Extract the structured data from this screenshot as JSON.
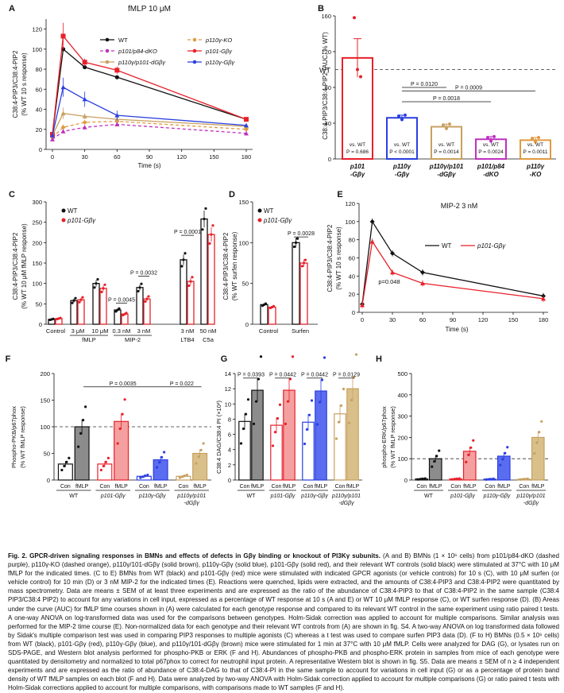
{
  "colors": {
    "wt": "#111111",
    "p101gbg": "#e8202a",
    "p110gbg": "#2b3fe0",
    "p110p101": "#c8a060",
    "p84": "#c030c0",
    "ko": "#e09a40",
    "grey": "#8c8c8c",
    "pink": "#f4a0a0",
    "blue": "#5a6cf0",
    "tan": "#d9c08a"
  },
  "panels": [
    {
      "letter": "A",
      "title": "fMLP 10 μM",
      "ylabel": "C38:4-PIP3/C38:4-PIP2",
      "ylabel2": "(% WT 10 s response)",
      "xlabel": "Time (s)",
      "xticks": [
        "0",
        "30",
        "60",
        "90",
        "120",
        "150",
        "180"
      ],
      "yticks": [
        "0",
        "20",
        "40",
        "60",
        "80",
        "100",
        "120"
      ],
      "legend": [
        "WT",
        "p110γ-KO",
        "p101/p84-dKO",
        "p101-Gβγ",
        "p110γ/p101-dGβγ",
        "p110γ-Gβγ"
      ],
      "chart_data": {
        "type": "line",
        "x": [
          0,
          10,
          30,
          60,
          180
        ],
        "xlim": [
          0,
          180
        ],
        "ylim": [
          0,
          130
        ],
        "series": [
          {
            "name": "WT",
            "values": [
              15,
              100,
              82,
              72,
              30
            ]
          },
          {
            "name": "p110γ-KO",
            "values": [
              12,
              22,
              27,
              28,
              20
            ]
          },
          {
            "name": "p101/p84-dKO",
            "values": [
              10,
              18,
              22,
              25,
              16
            ]
          },
          {
            "name": "p101-Gβγ",
            "values": [
              15,
              113,
              87,
              79,
              30
            ]
          },
          {
            "name": "p110γ/p101-dGβγ",
            "values": [
              14,
              36,
              33,
              30,
              23
            ]
          },
          {
            "name": "p110γ-Gβγ",
            "values": [
              14,
              62,
              50,
              34,
              24
            ]
          }
        ]
      }
    },
    {
      "letter": "B",
      "ylabel": "C38:4-PIP3/C38:4-PIP2 (AUC, % WT)",
      "wt_label": "WT",
      "yticks": [
        "0",
        "40",
        "80",
        "120",
        "160"
      ],
      "pvals": [
        "P = 0.0120",
        "P = 0.0009",
        "P = 0.0018"
      ],
      "chart_data": {
        "type": "bar",
        "ylim": [
          0,
          160
        ],
        "reference_line": 100,
        "categories": [
          "p101 -Gβγ",
          "p110γ -Gβγ",
          "p110γ/p101 -dGβγ",
          "p101/p84 -dKO",
          "p110γ -KO"
        ],
        "values": [
          113,
          46,
          36,
          22,
          21
        ],
        "annotations": [
          "vs. WT P = 0.686",
          "vs. WT P < 0.0001",
          "vs. WT P = 0.0014",
          "vs. WT P = 0.0024",
          "vs. WT P = 0.0011"
        ]
      }
    },
    {
      "letter": "C",
      "ylabel": "C38:4-PIP3/C38:4-PIP2",
      "ylabel2": "(% WT 10 μM fMLP response)",
      "yticks": [
        "0",
        "50",
        "100",
        "150",
        "200",
        "250",
        "300"
      ],
      "legend": [
        "WT",
        "p101-Gβγ"
      ],
      "pvals": [
        "P = 0.0001",
        "P = 0.0032",
        "P = 0.0045"
      ],
      "group_labels": [
        "fMLP",
        "MIP-2"
      ],
      "chart_data": {
        "type": "bar",
        "ylim": [
          0,
          300
        ],
        "categories": [
          "Control",
          "3 μM",
          "10 μM",
          "0.3 nM",
          "3 nM",
          "3 nM LTB4",
          "50 nM C5a"
        ],
        "series": [
          {
            "name": "WT",
            "values": [
              12,
              58,
              100,
              35,
              90,
              158,
              258
            ]
          },
          {
            "name": "p101-Gβγ",
            "values": [
              14,
              60,
              88,
              25,
              62,
              105,
              220
            ]
          }
        ]
      }
    },
    {
      "letter": "D",
      "ylabel": "C38:4-PIP3/C38:4-PIP2",
      "ylabel2": "(% WT surfen response)",
      "yticks": [
        "0",
        "50",
        "100",
        "150"
      ],
      "legend": [
        "WT",
        "p101-Gβγ"
      ],
      "pvals": [
        "P = 0.0028"
      ],
      "chart_data": {
        "type": "bar",
        "ylim": [
          0,
          150
        ],
        "categories": [
          "Control",
          "Surfen"
        ],
        "series": [
          {
            "name": "WT",
            "values": [
              24,
              100
            ]
          },
          {
            "name": "p101-Gβγ",
            "values": [
              21,
              75
            ]
          }
        ]
      }
    },
    {
      "letter": "E",
      "title": "MIP-2 3 nM",
      "ylabel": "C38:4-PIP3/C38:4-PIP2",
      "ylabel2": "(% WT 10 s response)",
      "xlabel": "Time (s)",
      "xticks": [
        "0",
        "30",
        "60",
        "90",
        "120",
        "150",
        "180"
      ],
      "yticks": [
        "0",
        "20",
        "40",
        "60",
        "80",
        "100",
        "120"
      ],
      "legend": [
        "WT",
        "p101-Gβγ"
      ],
      "pvals": [
        "p=0.048"
      ],
      "chart_data": {
        "type": "line",
        "x": [
          0,
          10,
          30,
          60,
          180
        ],
        "xlim": [
          0,
          180
        ],
        "ylim": [
          0,
          120
        ],
        "series": [
          {
            "name": "WT",
            "values": [
              9,
              100,
              65,
              44,
              18
            ]
          },
          {
            "name": "p101-Gβγ",
            "values": [
              8,
              78,
              44,
              32,
              15
            ]
          }
        ]
      }
    },
    {
      "letter": "F",
      "ylabel": "Phospho-PKB/p67phox",
      "ylabel2": "(% WT fMLP response)",
      "yticks": [
        "0",
        "50",
        "100",
        "150",
        "200"
      ],
      "pvals": [
        "P = 0.0035",
        "P = 0.022"
      ],
      "xticks": [
        "Con",
        "fMLP",
        "Con",
        "fMLP",
        "Con",
        "fMLP",
        "Con",
        "fMLP"
      ],
      "groups": [
        "WT",
        "p101-Gβγ",
        "p110γ-Gβγ",
        "p110γ/p101 -dGβγ"
      ],
      "chart_data": {
        "type": "bar",
        "ylim": [
          0,
          200
        ],
        "reference_line": 100,
        "categories": [
          "WT Con",
          "WT fMLP",
          "p101-Gβγ Con",
          "p101-Gβγ fMLP",
          "p110γ-Gβγ Con",
          "p110γ-Gβγ fMLP",
          "p110γ/p101-dGβγ Con",
          "p110γ/p101-dGβγ fMLP"
        ],
        "values": [
          30,
          100,
          30,
          110,
          7,
          38,
          7,
          50
        ]
      }
    },
    {
      "letter": "G",
      "ylabel": "C38:4 DAG/C38:4 PI (×10²)",
      "yticks": [
        "0",
        "2",
        "4",
        "6",
        "8",
        "10",
        "12",
        "14"
      ],
      "pvals": [
        "P = 0.0393",
        "P = 0.0442",
        "P = 0.0442",
        "P = 0.0129"
      ],
      "xticks": [
        "Con",
        "fMLP",
        "Con",
        "fMLP",
        "Con",
        "fMLP",
        "Con",
        "fMLP"
      ],
      "groups": [
        "WT",
        "p101-Gβγ",
        "p110γ-Gβγ",
        "p110γ/p101 -dGβγ"
      ],
      "chart_data": {
        "type": "bar",
        "ylim": [
          0,
          14
        ],
        "categories": [
          "WT Con",
          "WT fMLP",
          "p101-Gβγ Con",
          "p101-Gβγ fMLP",
          "p110γ-Gβγ Con",
          "p110γ-Gβγ fMLP",
          "p110γ/p101-dGβγ Con",
          "p110γ/p101-dGβγ fMLP"
        ],
        "values": [
          7.7,
          11.8,
          7.2,
          11.8,
          7.6,
          11.7,
          8.7,
          12.0
        ]
      }
    },
    {
      "letter": "H",
      "ylabel": "phospho-ERK/p67phox",
      "ylabel2": "(% WT fMLP response)",
      "yticks": [
        "0",
        "100",
        "200",
        "300",
        "400",
        "500"
      ],
      "xticks": [
        "Con",
        "fMLP",
        "Con",
        "fMLP",
        "Con",
        "fMLP",
        "Con",
        "fMLP"
      ],
      "groups": [
        "WT",
        "p101-Gβγ",
        "p110γ-Gβγ",
        "p110γ/p101 -dGβγ"
      ],
      "chart_data": {
        "type": "bar",
        "ylim": [
          0,
          500
        ],
        "reference_line": 100,
        "categories": [
          "WT Con",
          "WT fMLP",
          "p101-Gβγ Con",
          "p101-Gβγ fMLP",
          "p110γ-Gβγ Con",
          "p110γ-Gβγ fMLP",
          "p110γ/p101-dGβγ Con",
          "p110γ/p101-dGβγ fMLP"
        ],
        "values": [
          5,
          100,
          5,
          135,
          4,
          112,
          4,
          200
        ]
      }
    }
  ],
  "caption": {
    "title": "Fig. 2. GPCR-driven signaling responses in BMNs and effects of defects in Gβγ binding or knockout of PI3Kγ subunits.",
    "body": " (A and B) BMNs (1 × 10⁶ cells) from p101/p84-dKO (dashed purple), p110γ-KO (dashed orange), p110γ/101-dGβγ (solid brown), p110γ-Gβγ (solid blue), p101-Gβγ (solid red), and their relevant WT controls (solid black) were stimulated at 37°C with 10 μM fMLP for the indicated times. (C to E) BMNs from WT (black) and p101-Gβγ (red) mice were stimulated with indicated GPCR agonists (or vehicle controls) for 10 s (C), with 10 μM surfen (or vehicle control) for 10 min (D) or 3 nM MIP-2 for the indicated times (E). Reactions were quenched, lipids were extracted, and the amounts of C38:4-PIP3 and C38:4-PIP2 were quantitated by mass spectrometry. Data are means ± SEM of at least three experiments and are expressed as the ratio of the abundance of C38:4-PIP3 to that of C38:4-PIP2 in the same sample (C38:4 PIP3/C38:4 PIP2) to account for any variations in cell input, expressed as a percentage of WT response at 10 s (A and E) or WT 10 μM fMLP response (C), or WT surfen response (D). (B) Areas under the curve (AUC) for fMLP time courses shown in (A) were calculated for each genotype response and compared to its relevant WT control in the same experiment using ratio paired t tests. A one-way ANOVA on log-transformed data was used for the comparisons between genotypes. Holm-Sidak correction was applied to account for multiple comparisons. Similar analysis was performed for the MIP-2 time course (E). Non-normalized data for each genotype and their relevant WT controls from (A) are shown in fig. S4. A two-way ANOVA on log transformed data followed by Sidak's multiple comparison test was used in comparing PIP3 responses to multiple agonists (C) whereas a t test was used to compare surfen PIP3 data (D). (F to H) BMNs (0.5 × 10⁶ cells) from WT (black), p101-Gβγ (red), p110γ-Gβγ (blue), and p110γ/101-dGβγ (brown) mice were stimulated for 1 min at 37°C with 10 μM fMLP. Cells were analyzed for DAG (G), or lysates run on SDS-PAGE, and Western blot analysis performed for phospho-PKB or ERK (F and H). Abundances of phospho-PKB and phospho-ERK protein in samples from mice of each genotype were quantitated by densitometry and normalized to total p67phox to correct for neutrophil input protein. A representative Western blot is shown in fig. S5. Data are means ± SEM of n ≥ 4 independent experiments and are expressed as the ratio of abundance of C38:4-DAG to that of C38:4-PI in the same sample to account for variations in cell input (G) or as a percentage of protein band density of WT fMLP samples on each blot (F and H). Data were analyzed by two-way ANOVA with Holm-Sidak correction applied to account for multiple comparisons (G) or ratio paired t tests with Holm-Sidak corrections applied to account for multiple comparisons, with comparisons made to WT samples (F and H)."
  }
}
